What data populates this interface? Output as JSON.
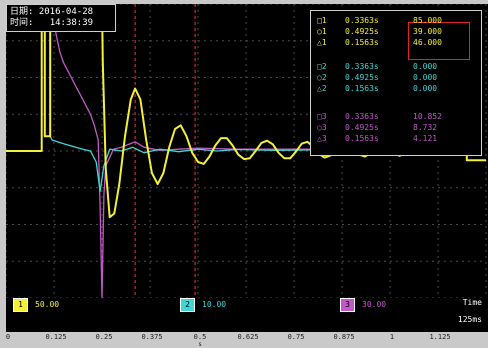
{
  "header": {
    "date_label": "日期:",
    "date_value": "2016-04-28",
    "time_label": "时间:",
    "time_value": "14:38:39"
  },
  "readout": {
    "rows": [
      {
        "marker": "□1",
        "time": "0.3363s",
        "value": "85.000",
        "color": "#f4ef3a"
      },
      {
        "marker": "○1",
        "time": "0.4925s",
        "value": "39.000",
        "color": "#f4ef3a"
      },
      {
        "marker": "△1",
        "time": "0.1563s",
        "value": "46.000",
        "color": "#f4ef3a"
      },
      {
        "marker": "□2",
        "time": "0.3363s",
        "value": "0.000",
        "color": "#3fd6d6"
      },
      {
        "marker": "○2",
        "time": "0.4925s",
        "value": "0.000",
        "color": "#3fd6d6"
      },
      {
        "marker": "△2",
        "time": "0.1563s",
        "value": "0.000",
        "color": "#3fd6d6"
      },
      {
        "marker": "□3",
        "time": "0.3363s",
        "value": "10.852",
        "color": "#c15ac8"
      },
      {
        "marker": "○3",
        "time": "0.4925s",
        "value": "8.732",
        "color": "#c15ac8"
      },
      {
        "marker": "△3",
        "time": "0.1563s",
        "value": "4.121",
        "color": "#c15ac8"
      }
    ]
  },
  "channels": [
    {
      "id": "1",
      "value": "50.00",
      "color": "#f4ef3a"
    },
    {
      "id": "2",
      "value": "10.00",
      "color": "#3fd6d6"
    },
    {
      "id": "3",
      "value": "30.00",
      "color": "#c15ac8"
    }
  ],
  "time_label": "Time",
  "time_scale": "125ms",
  "colors": {
    "background": "#000000",
    "grid": "#4a4a4a",
    "cursor": "#d42a2a",
    "ch1": "#f4ef3a",
    "ch2": "#3fd6d6",
    "ch3": "#c15ac8"
  },
  "chart_data": {
    "type": "line",
    "title": "",
    "xlabel": "",
    "ylabel": "",
    "xlim": [
      0,
      1.25
    ],
    "ylim": [
      -4,
      4
    ],
    "x_ticks": [
      "0",
      "0.125",
      "0.25",
      "0.375",
      "0.5",
      "0.625",
      "0.75",
      "0.875",
      "1",
      "1.125"
    ],
    "x_unit_label": "s",
    "x_unit_at": "0.5",
    "grid": true,
    "cursors_x": [
      0.3363,
      0.4925
    ],
    "series": [
      {
        "channel": "1",
        "color": "#f4ef3a",
        "points": [
          [
            0,
            0
          ],
          [
            0.093,
            0
          ],
          [
            0.093,
            4
          ],
          [
            0.101,
            4
          ],
          [
            0.101,
            0.4
          ],
          [
            0.115,
            0.4
          ],
          [
            0.115,
            4
          ],
          [
            0.25,
            4
          ],
          [
            0.252,
            2.4
          ],
          [
            0.26,
            -0.5
          ],
          [
            0.27,
            -1.8
          ],
          [
            0.282,
            -1.7
          ],
          [
            0.295,
            -0.9
          ],
          [
            0.31,
            0.4
          ],
          [
            0.325,
            1.4
          ],
          [
            0.3363,
            1.7
          ],
          [
            0.35,
            1.4
          ],
          [
            0.365,
            0.3
          ],
          [
            0.38,
            -0.6
          ],
          [
            0.395,
            -0.9
          ],
          [
            0.41,
            -0.6
          ],
          [
            0.425,
            0.1
          ],
          [
            0.44,
            0.6
          ],
          [
            0.455,
            0.7
          ],
          [
            0.47,
            0.4
          ],
          [
            0.485,
            -0.05
          ],
          [
            0.5,
            -0.3
          ],
          [
            0.515,
            -0.35
          ],
          [
            0.53,
            -0.15
          ],
          [
            0.545,
            0.15
          ],
          [
            0.56,
            0.35
          ],
          [
            0.575,
            0.35
          ],
          [
            0.59,
            0.15
          ],
          [
            0.605,
            -0.1
          ],
          [
            0.62,
            -0.22
          ],
          [
            0.635,
            -0.2
          ],
          [
            0.65,
            0.0
          ],
          [
            0.665,
            0.22
          ],
          [
            0.68,
            0.28
          ],
          [
            0.695,
            0.18
          ],
          [
            0.71,
            -0.05
          ],
          [
            0.725,
            -0.2
          ],
          [
            0.74,
            -0.2
          ],
          [
            0.755,
            -0.02
          ],
          [
            0.77,
            0.2
          ],
          [
            0.785,
            0.25
          ],
          [
            0.8,
            0.12
          ],
          [
            0.815,
            -0.08
          ],
          [
            0.83,
            -0.18
          ],
          [
            0.845,
            -0.12
          ],
          [
            0.86,
            0.05
          ],
          [
            0.875,
            0.2
          ],
          [
            0.89,
            0.22
          ],
          [
            0.905,
            0.08
          ],
          [
            0.92,
            -0.1
          ],
          [
            0.935,
            -0.15
          ],
          [
            0.95,
            -0.05
          ],
          [
            0.965,
            0.12
          ],
          [
            0.98,
            0.2
          ],
          [
            0.995,
            0.12
          ],
          [
            1.01,
            -0.05
          ],
          [
            1.025,
            -0.13
          ],
          [
            1.04,
            -0.05
          ],
          [
            1.055,
            0.1
          ],
          [
            1.07,
            0.15
          ],
          [
            1.085,
            0.08
          ],
          [
            1.1,
            -0.05
          ],
          [
            1.115,
            -0.08
          ],
          [
            1.13,
            0.02
          ],
          [
            1.145,
            0.1
          ],
          [
            1.16,
            0.08
          ],
          [
            1.175,
            0.0
          ],
          [
            1.19,
            -0.05
          ],
          [
            1.2,
            0.0
          ],
          [
            1.2,
            -0.25
          ],
          [
            1.25,
            -0.25
          ]
        ]
      },
      {
        "channel": "2",
        "color": "#3fd6d6",
        "points": [
          [
            0,
            0
          ],
          [
            0.093,
            0
          ],
          [
            0.093,
            4
          ],
          [
            0.101,
            4
          ],
          [
            0.101,
            0.4
          ],
          [
            0.115,
            0.4
          ],
          [
            0.12,
            0.3
          ],
          [
            0.15,
            0.2
          ],
          [
            0.2,
            0.05
          ],
          [
            0.22,
            0
          ],
          [
            0.235,
            -0.3
          ],
          [
            0.245,
            -1.1
          ],
          [
            0.255,
            -0.4
          ],
          [
            0.27,
            0.05
          ],
          [
            0.3,
            0.0
          ],
          [
            0.33,
            0.1
          ],
          [
            0.36,
            -0.05
          ],
          [
            0.4,
            0.05
          ],
          [
            0.45,
            -0.02
          ],
          [
            0.5,
            0.05
          ],
          [
            0.55,
            0.0
          ],
          [
            0.6,
            0.04
          ],
          [
            0.7,
            0.02
          ],
          [
            0.8,
            0.03
          ],
          [
            0.9,
            0.02
          ],
          [
            1.0,
            0.02
          ],
          [
            1.1,
            0.02
          ],
          [
            1.2,
            0.02
          ],
          [
            1.2,
            -0.25
          ],
          [
            1.25,
            -0.25
          ]
        ]
      },
      {
        "channel": "3",
        "color": "#c15ac8",
        "points": [
          [
            0,
            0
          ],
          [
            0.093,
            0
          ],
          [
            0.093,
            4
          ],
          [
            0.101,
            4
          ],
          [
            0.101,
            0.4
          ],
          [
            0.115,
            0.4
          ],
          [
            0.115,
            4
          ],
          [
            0.125,
            4
          ],
          [
            0.13,
            3.2
          ],
          [
            0.14,
            2.7
          ],
          [
            0.15,
            2.4
          ],
          [
            0.16,
            2.2
          ],
          [
            0.17,
            2.0
          ],
          [
            0.18,
            1.8
          ],
          [
            0.19,
            1.6
          ],
          [
            0.2,
            1.4
          ],
          [
            0.21,
            1.2
          ],
          [
            0.22,
            1.0
          ],
          [
            0.23,
            0.7
          ],
          [
            0.24,
            0.3
          ],
          [
            0.245,
            -1.5
          ],
          [
            0.25,
            -4
          ],
          [
            0.255,
            -1.2
          ],
          [
            0.26,
            -0.4
          ],
          [
            0.28,
            0.05
          ],
          [
            0.3,
            0.1
          ],
          [
            0.3363,
            0.25
          ],
          [
            0.36,
            0.1
          ],
          [
            0.4,
            0.02
          ],
          [
            0.45,
            0.05
          ],
          [
            0.5,
            0.08
          ],
          [
            0.6,
            0.05
          ],
          [
            0.7,
            0.05
          ],
          [
            0.8,
            0.05
          ],
          [
            0.9,
            0.05
          ],
          [
            1.0,
            0.05
          ],
          [
            1.1,
            0.05
          ],
          [
            1.2,
            0.05
          ],
          [
            1.2,
            -0.25
          ],
          [
            1.25,
            -0.25
          ]
        ]
      }
    ]
  }
}
